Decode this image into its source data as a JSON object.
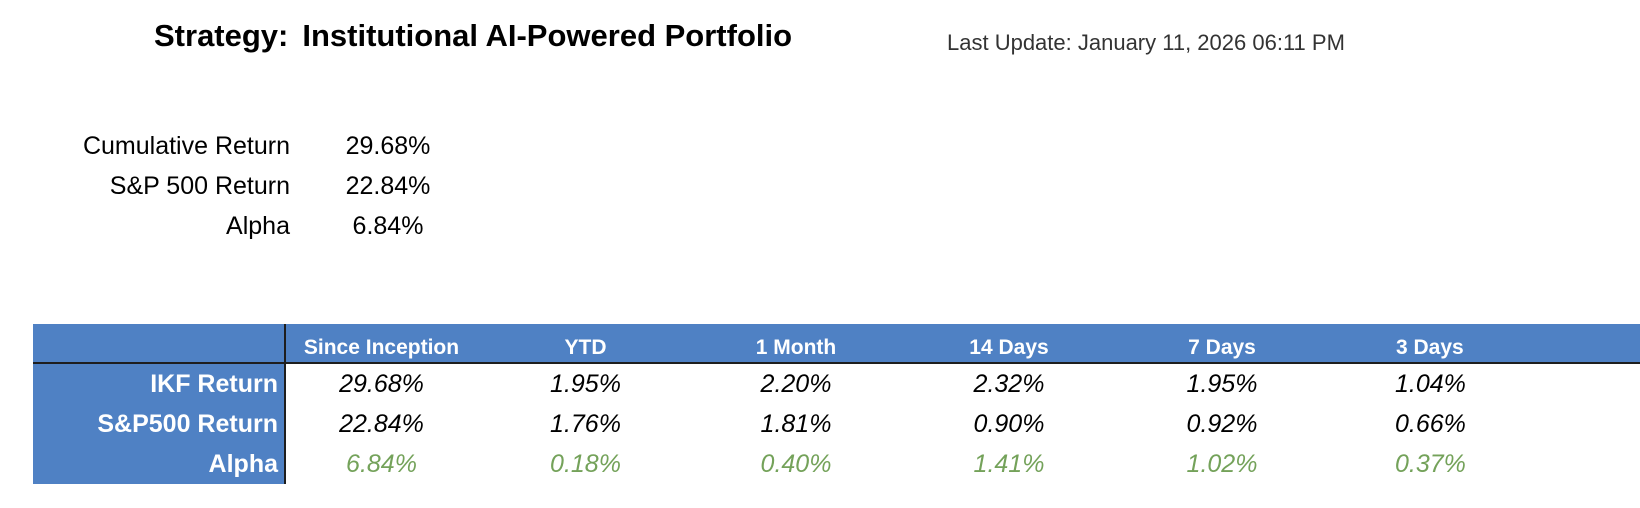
{
  "header": {
    "strategy_label": "Strategy:",
    "strategy_name": "Institutional AI-Powered Portfolio",
    "last_update": "Last Update: January 11, 2026 06:11 PM"
  },
  "summary": [
    {
      "label": "Cumulative Return",
      "value": "29.68%"
    },
    {
      "label": "S&P 500 Return",
      "value": "22.84%"
    },
    {
      "label": "Alpha",
      "value": "6.84%"
    }
  ],
  "table": {
    "columns": [
      "Since Inception",
      "YTD",
      "1 Month",
      "14 Days",
      "7 Days",
      "3 Days"
    ],
    "rows": [
      {
        "label": "IKF Return",
        "values": [
          "29.68%",
          "1.95%",
          "2.20%",
          "2.32%",
          "1.95%",
          "1.04%"
        ]
      },
      {
        "label": "S&P500 Return",
        "values": [
          "22.84%",
          "1.76%",
          "1.81%",
          "0.90%",
          "0.92%",
          "0.66%"
        ]
      },
      {
        "label": "Alpha",
        "values": [
          "6.84%",
          "0.18%",
          "0.40%",
          "1.41%",
          "1.02%",
          "0.37%"
        ]
      }
    ]
  },
  "colors": {
    "header_fill": "#4f81c4",
    "alpha_text": "#74a25a"
  }
}
